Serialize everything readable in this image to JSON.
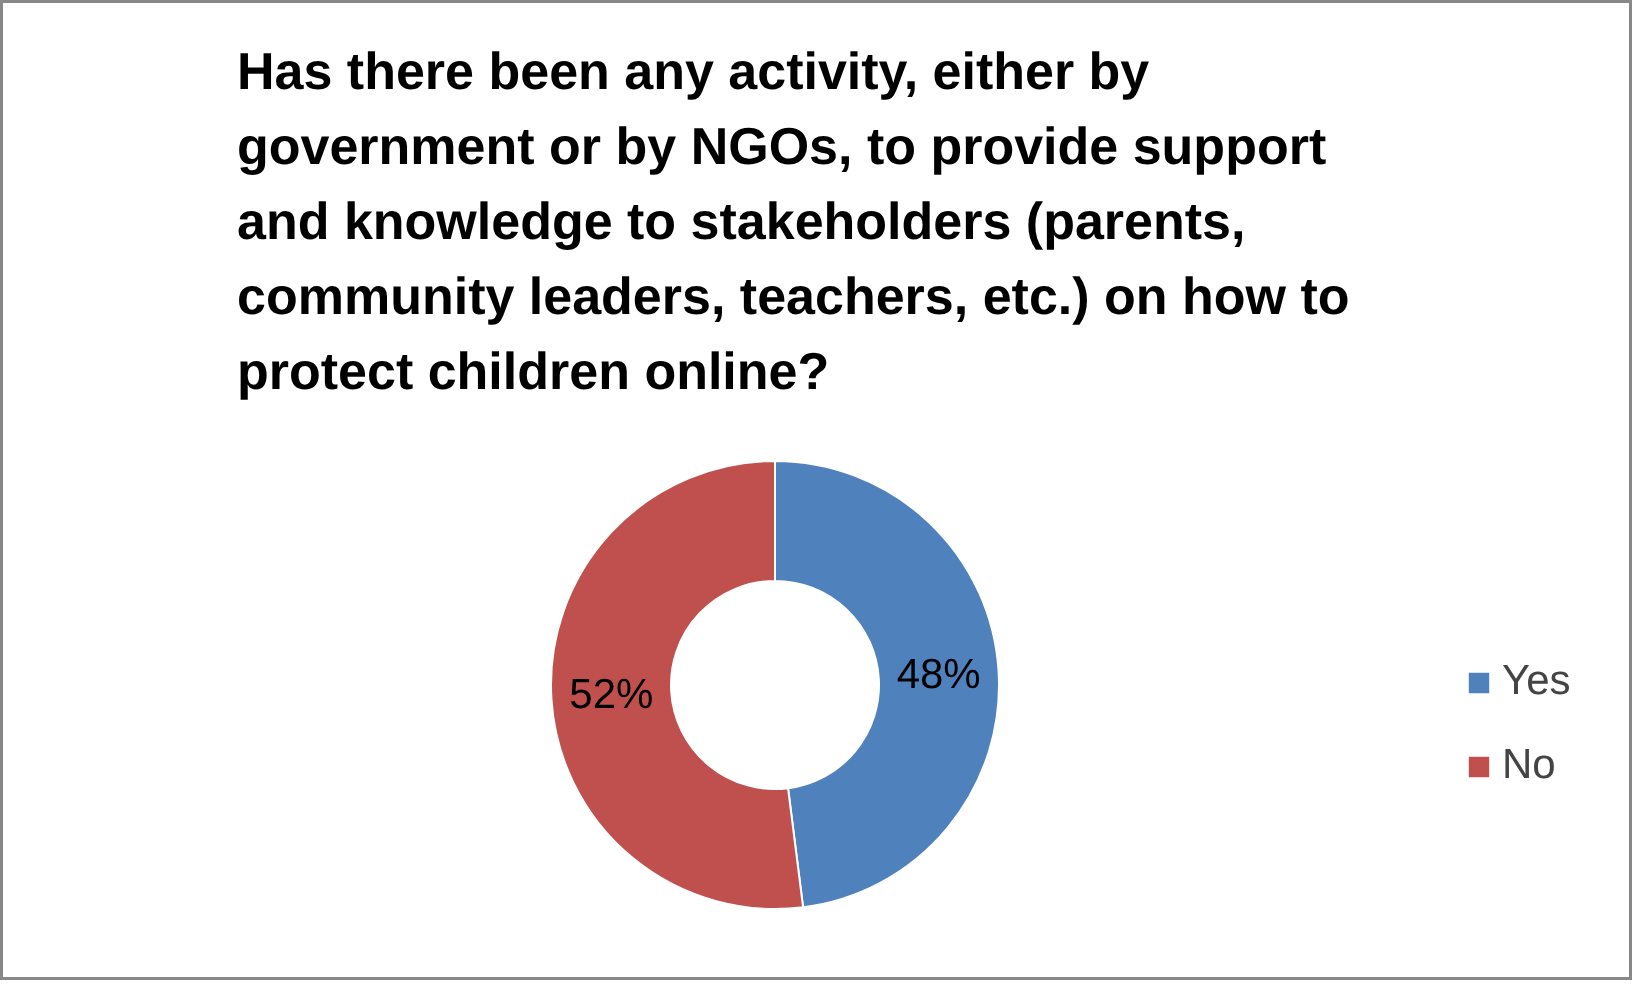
{
  "chart_data": {
    "type": "donut",
    "title": "Has there been any activity, either by government or by NGOs, to provide support and knowledge to stakeholders (parents, community leaders, teachers, etc.) on how to protect children online?",
    "categories": [
      "Yes",
      "No"
    ],
    "values": [
      48,
      52
    ],
    "colors": [
      "#4f81bd",
      "#c0504d"
    ],
    "value_labels": [
      "48%",
      "52%"
    ],
    "legend": "right"
  }
}
